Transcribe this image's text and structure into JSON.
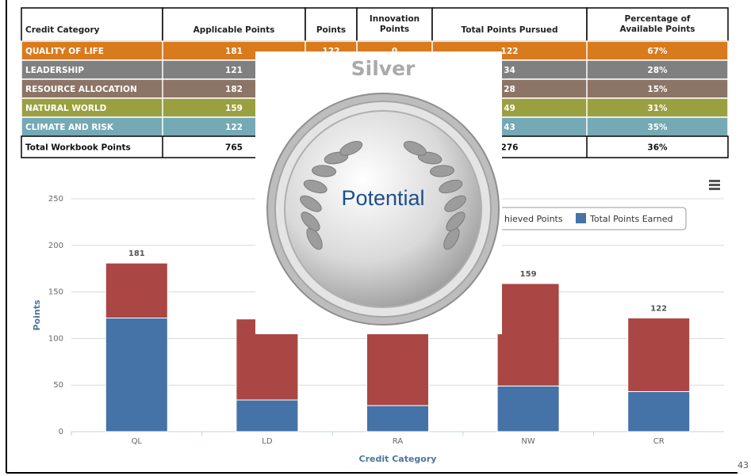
{
  "table": {
    "columns": [
      "Credit Category",
      "Applicable Points",
      "Points",
      "Innovation Points",
      "Total Points Pursued",
      "Percentage of Available Points"
    ],
    "rows": [
      [
        "QUALITY OF LIFE",
        "181",
        "122",
        "0",
        "122",
        "67%"
      ],
      [
        "LEADERSHIP",
        "121",
        null,
        null,
        "34",
        "28%"
      ],
      [
        "RESOURCE ALLOCATION",
        "182",
        null,
        null,
        "28",
        "15%"
      ],
      [
        "NATURAL WORLD",
        "159",
        null,
        null,
        "49",
        "31%"
      ],
      [
        "CLIMATE AND RISK",
        "122",
        null,
        null,
        "43",
        "35%"
      ],
      [
        "Total Workbook Points",
        "765",
        null,
        null,
        "276",
        "36%"
      ]
    ],
    "row_colors": [
      "#d97b1c",
      "#808080",
      "#8c7566",
      "#9aa03f",
      "#74a9b5",
      "#ffffff"
    ]
  },
  "badge": {
    "level": "Silver",
    "label": "Potential"
  },
  "chart_data": {
    "type": "stacked_bar",
    "x_label": "Credit Category",
    "y_label": "Points",
    "categories": [
      "QL",
      "LD",
      "RA",
      "NW",
      "CR"
    ],
    "series": [
      {
        "name": "Total Points Earned",
        "color": "#4572a7",
        "values": [
          122,
          34,
          28,
          49,
          43
        ]
      },
      {
        "name": "hieved Points",
        "color": "#aa4643",
        "values": [
          59,
          87,
          154,
          110,
          79
        ]
      }
    ],
    "total_labels": [
      181,
      null,
      null,
      159,
      122
    ],
    "ylim": [
      0,
      250
    ],
    "yticks": [
      0,
      50,
      100,
      150,
      200,
      250
    ],
    "grid": true
  },
  "page_number": "43"
}
